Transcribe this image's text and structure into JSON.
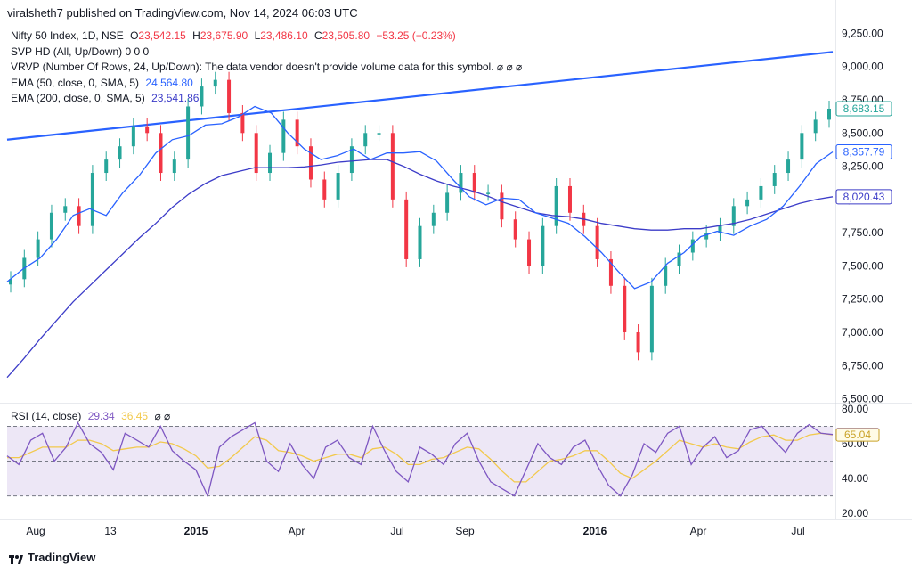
{
  "header": {
    "published": "viralsheth7 published on TradingView.com, Nov 14, 2024 06:03 UTC"
  },
  "legend": {
    "symbol": "Nifty 50 Index, 1D, NSE",
    "o_label": "O",
    "o_val": "23,542.15",
    "h_label": "H",
    "h_val": "23,675.90",
    "l_label": "L",
    "l_val": "23,486.10",
    "c_label": "C",
    "c_val": "23,505.80",
    "change": "−53.25 (−0.23%)",
    "svp": "SVP HD (All, Up/Down)  0  0  0",
    "vrvp": "VRVP (Number Of Rows, 24, Up/Down): The data vendor doesn't provide volume data for this symbol.  ⌀  ⌀  ⌀",
    "ema50_label": "EMA (50, close, 0, SMA, 5)",
    "ema50_val": "24,564.80",
    "ema200_label": "EMA (200, close, 0, SMA, 5)",
    "ema200_val": "23,541.86",
    "rsi_label": "RSI (14, close)",
    "rsi_val": "29.34",
    "rsi_ma_val": "36.45",
    "rsi_tail": "⌀  ⌀"
  },
  "brand": {
    "name": "TradingView"
  },
  "colors": {
    "up": "#26a69a",
    "down": "#f23645",
    "ema50": "#2962ff",
    "ema200": "#3c3cc8",
    "trend": "#2962ff",
    "rsi": "#7e57c2",
    "rsi_ma": "#f2c94c",
    "band": "#ede7f6"
  },
  "chart_data": {
    "type": "line",
    "title": "Nifty 50 Index, 1D, NSE",
    "y_axis_ticks": [
      "9,250.00",
      "9,000.00",
      "8,750.00",
      "8,500.00",
      "8,250.00",
      "8,000.00",
      "7,750.00",
      "7,500.00",
      "7,250.00",
      "7,000.00",
      "6,750.00",
      "6,500.00"
    ],
    "ylim": [
      6450,
      9300
    ],
    "x_axis_labels": [
      "Aug",
      "13",
      "2015",
      "Apr",
      "Jul",
      "Sep",
      "2016",
      "Apr",
      "Jul"
    ],
    "price_labels": {
      "last": "8,683.15",
      "ema50": "8,357.79",
      "ema200": "8,020.43"
    },
    "trendline": {
      "start": 8450,
      "end": 9110
    },
    "series": [
      {
        "name": "EMA (50, close, 0, SMA, 5)",
        "values": [
          7380,
          7480,
          7560,
          7700,
          7880,
          7930,
          7880,
          8050,
          8180,
          8350,
          8450,
          8480,
          8560,
          8570,
          8620,
          8700,
          8650,
          8500,
          8380,
          8300,
          8330,
          8380,
          8300,
          8350,
          8350,
          8360,
          8290,
          8150,
          8020,
          7960,
          8010,
          8000,
          7900,
          7860,
          7820,
          7720,
          7600,
          7460,
          7330,
          7380,
          7520,
          7600,
          7720,
          7760,
          7730,
          7800,
          7850,
          7950,
          8100,
          8270,
          8357.79
        ]
      },
      {
        "name": "EMA (200, close, 0, SMA, 5)",
        "values": [
          6660,
          6800,
          6950,
          7090,
          7230,
          7350,
          7470,
          7590,
          7710,
          7820,
          7940,
          8040,
          8120,
          8180,
          8210,
          8240,
          8240,
          8240,
          8245,
          8260,
          8280,
          8290,
          8300,
          8300,
          8250,
          8190,
          8140,
          8100,
          8070,
          8030,
          7980,
          7940,
          7900,
          7880,
          7870,
          7850,
          7820,
          7800,
          7780,
          7770,
          7770,
          7780,
          7780,
          7800,
          7820,
          7850,
          7890,
          7930,
          7970,
          8000,
          8020.43
        ]
      },
      {
        "name": "Close",
        "values": [
          7400,
          7560,
          7700,
          7900,
          7950,
          7800,
          8200,
          8300,
          8400,
          8550,
          8500,
          8200,
          8300,
          8700,
          8850,
          8900,
          8650,
          8500,
          8200,
          8350,
          8600,
          8400,
          8150,
          8000,
          8200,
          8400,
          8500,
          8500,
          8000,
          7550,
          7800,
          7900,
          8050,
          8200,
          8050,
          8050,
          7850,
          7700,
          7500,
          7800,
          8100,
          7900,
          7800,
          7550,
          7350,
          7000,
          6850,
          7350,
          7500,
          7600,
          7700,
          7750,
          7800,
          7950,
          8000,
          8100,
          8200,
          8300,
          8500,
          8600,
          8683.15
        ]
      }
    ],
    "rsi": {
      "yticks": [
        "80.00",
        "60.00",
        "40.00",
        "20.00"
      ],
      "ylim": [
        18,
        82
      ],
      "levels": [
        70,
        30
      ],
      "last": "65.25",
      "ma_last": "65.04",
      "values": [
        53,
        48,
        62,
        66,
        50,
        58,
        72,
        60,
        55,
        45,
        66,
        62,
        58,
        70,
        56,
        50,
        45,
        30,
        58,
        64,
        68,
        72,
        50,
        44,
        60,
        48,
        40,
        58,
        62,
        52,
        48,
        70,
        56,
        44,
        38,
        58,
        54,
        48,
        60,
        66,
        50,
        38,
        34,
        30,
        45,
        60,
        52,
        48,
        58,
        62,
        48,
        36,
        30,
        42,
        60,
        55,
        66,
        70,
        48,
        58,
        64,
        52,
        56,
        68,
        70,
        62,
        55,
        66,
        71,
        66,
        65.25
      ],
      "ma_values": [
        52,
        52,
        55,
        58,
        58,
        58,
        62,
        62,
        60,
        56,
        57,
        58,
        58,
        61,
        60,
        57,
        53,
        46,
        47,
        52,
        58,
        64,
        62,
        56,
        55,
        53,
        50,
        52,
        54,
        54,
        52,
        57,
        58,
        54,
        48,
        48,
        51,
        52,
        55,
        58,
        57,
        51,
        44,
        38,
        38,
        44,
        50,
        51,
        53,
        56,
        56,
        50,
        43,
        40,
        45,
        50,
        56,
        62,
        60,
        58,
        60,
        58,
        57,
        61,
        64,
        65,
        62,
        62,
        65,
        66,
        65.04
      ]
    }
  }
}
